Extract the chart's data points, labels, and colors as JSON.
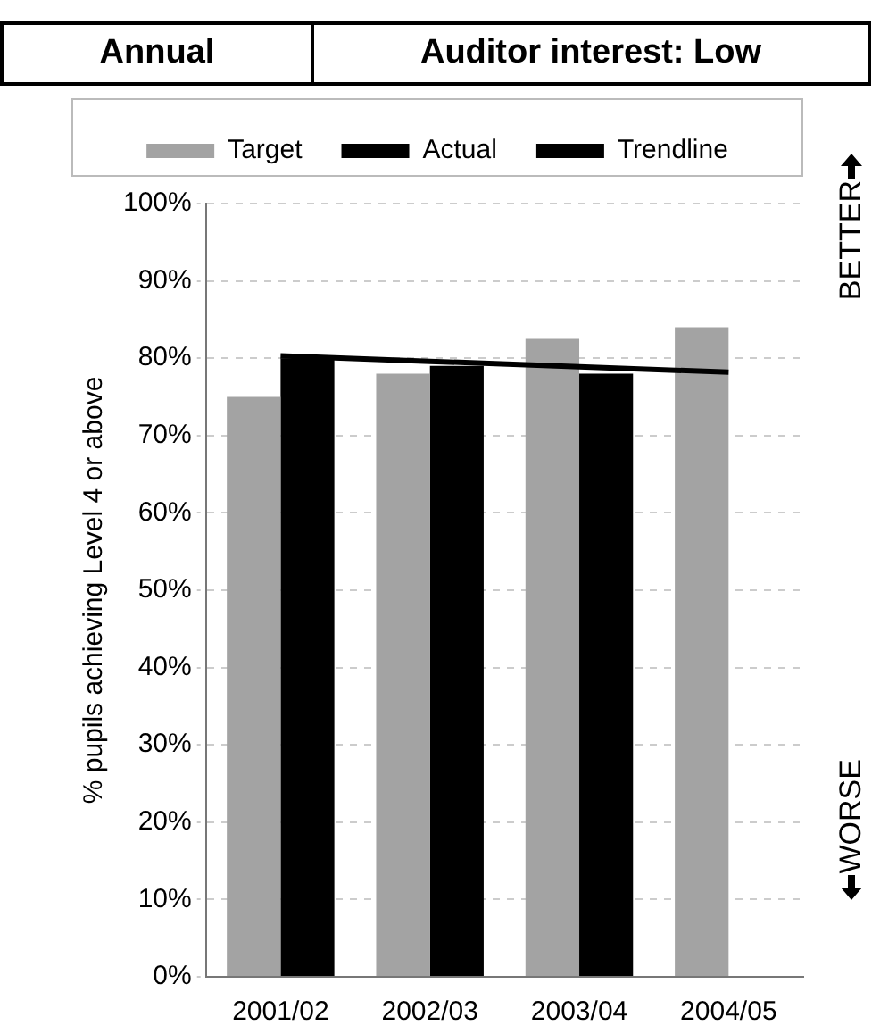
{
  "chart_data": {
    "type": "bar",
    "title": "Annual",
    "subtitle": "Auditor interest: Low",
    "ylabel": "% pupils achieving Level 4 or above",
    "categories": [
      "2001/02",
      "2002/03",
      "2003/04",
      "2004/05"
    ],
    "series": [
      {
        "name": "Target",
        "color": "#a3a3a3",
        "values": [
          75,
          78,
          82.5,
          84
        ]
      },
      {
        "name": "Actual",
        "color": "#000000",
        "values": [
          80,
          79,
          78,
          null
        ]
      },
      {
        "name": "Trendline",
        "type": "line",
        "color": "#000000",
        "values": [
          80.3,
          79.6,
          78.9,
          78.2
        ]
      }
    ],
    "ylim": [
      0,
      100
    ],
    "yticks": [
      {
        "value": 0,
        "label": "0%"
      },
      {
        "value": 10,
        "label": "10%"
      },
      {
        "value": 20,
        "label": "20%"
      },
      {
        "value": 30,
        "label": "30%"
      },
      {
        "value": 40,
        "label": "40%"
      },
      {
        "value": 50,
        "label": "50%"
      },
      {
        "value": 60,
        "label": "60%"
      },
      {
        "value": 70,
        "label": "70%"
      },
      {
        "value": 80,
        "label": "80%"
      },
      {
        "value": 90,
        "label": "90%"
      },
      {
        "value": 100,
        "label": "100%"
      }
    ],
    "grid": "y",
    "legend": "top",
    "marker": "none",
    "line_style": "solid",
    "annotations": [
      "BETTER",
      "WORSE"
    ]
  }
}
